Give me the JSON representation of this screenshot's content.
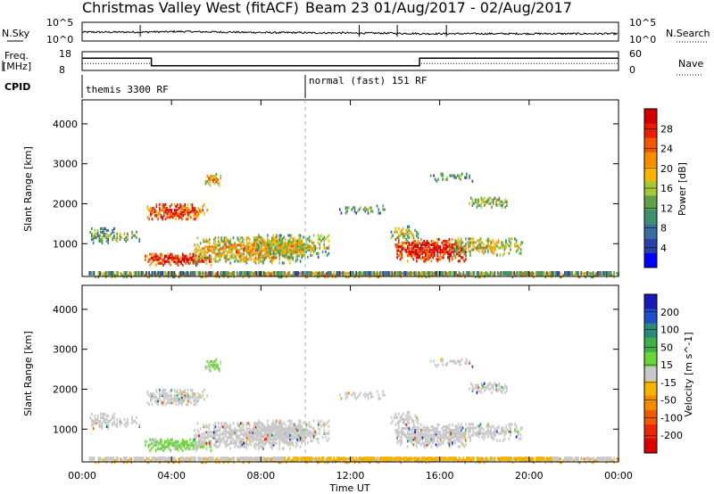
{
  "chart_data": [
    {
      "type": "line",
      "header": {
        "title": "Christmas Valley West (fitACF)",
        "beam": "Beam 23 01/Aug/2017 - 02/Aug/2017"
      },
      "left_label": "N.Sky",
      "right_label": "N.Search",
      "left_ticks": [
        "10^5",
        "10^0"
      ],
      "right_ticks": [
        "10^5",
        "10^0"
      ],
      "series": [
        {
          "name": "N.Sky",
          "values": [
            1.0,
            1.0,
            1.0,
            1.05,
            1.1,
            1.05,
            1.0,
            0.95,
            0.9,
            0.9,
            0.85,
            0.85,
            0.8,
            0.8,
            0.75,
            0.7,
            0.7,
            0.7,
            0.7,
            0.7,
            0.7,
            0.7,
            0.7,
            0.7,
            0.7
          ]
        }
      ]
    },
    {
      "type": "line",
      "left_label": "Freq. [MHz]",
      "left_ticks": [
        "18",
        "8"
      ],
      "right_ticks": [
        "60",
        "0"
      ],
      "right_label": "Nave",
      "freq_label_lines": [
        "Freq.",
        "[MHz]"
      ],
      "series": [
        {
          "name": "Freq.",
          "x": [
            0,
            3.1,
            3.1,
            15.1,
            15.1,
            24
          ],
          "values": [
            14.5,
            14.5,
            10.5,
            10.5,
            14.5,
            14.5
          ]
        },
        {
          "name": "Nave",
          "x": [
            0,
            3.1,
            3.1,
            15.1,
            15.1,
            24
          ],
          "values": [
            22,
            22,
            16,
            16,
            22,
            22
          ]
        }
      ]
    },
    {
      "type": "table",
      "left_label": "CPID",
      "segments": [
        {
          "label": "themis 3300 RF",
          "start": 0,
          "end": 10.0
        },
        {
          "label": "normal (fast) 151 RF",
          "start": 10.0,
          "end": 24
        }
      ]
    },
    {
      "type": "heatmap",
      "ylabel": "Slant Range [km]",
      "yticks": [
        1000,
        2000,
        3000,
        4000
      ],
      "ylim": [
        180,
        4600
      ],
      "xlim": [
        0,
        24
      ],
      "colorbar": {
        "label": "Power [dB]",
        "ticks": [
          4,
          8,
          12,
          16,
          20,
          24,
          28
        ],
        "range": [
          0,
          32
        ],
        "colors": [
          "#0000ff",
          "#2a3ea6",
          "#3b6e9e",
          "#3e8f6c",
          "#5fa048",
          "#a5c73a",
          "#fcb400",
          "#fa8c00",
          "#f25800",
          "#e81e00",
          "#d00000"
        ]
      }
    },
    {
      "type": "heatmap",
      "ylabel": "Slant Range [km]",
      "yticks": [
        1000,
        2000,
        3000,
        4000
      ],
      "ylim": [
        180,
        4600
      ],
      "xlim": [
        0,
        24
      ],
      "xticks": [
        "00:00",
        "04:00",
        "08:00",
        "12:00",
        "16:00",
        "20:00",
        "00:00"
      ],
      "xlabel": "Time UT",
      "colorbar": {
        "label": "Velocity [m s^-1]",
        "ticks": [
          "200",
          "100",
          "50",
          "15",
          "-15",
          "-50",
          "-100",
          "-200"
        ],
        "colors": [
          "#1818b4",
          "#1e50c8",
          "#2a8a78",
          "#3fb04a",
          "#6cd43a",
          "#c8c8c8",
          "#f5b400",
          "#f58c00",
          "#f05a00",
          "#e82800",
          "#dc0000"
        ]
      }
    }
  ]
}
